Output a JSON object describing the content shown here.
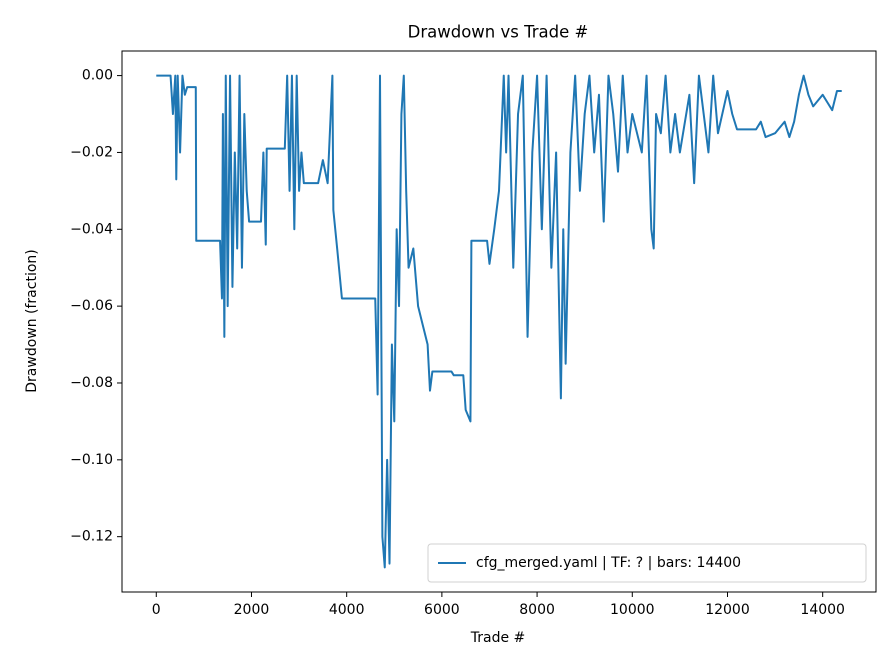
{
  "chart_data": {
    "type": "line",
    "title": "Drawdown vs Trade #",
    "x_label": "Trade #",
    "y_label": "Drawdown (fraction)",
    "x": [
      0,
      300,
      350,
      400,
      420,
      450,
      500,
      550,
      600,
      650,
      830,
      840,
      1340,
      1380,
      1400,
      1430,
      1460,
      1500,
      1550,
      1600,
      1650,
      1700,
      1750,
      1800,
      1850,
      1900,
      1950,
      2200,
      2250,
      2300,
      2320,
      2700,
      2750,
      2800,
      2850,
      2900,
      2950,
      3000,
      3050,
      3100,
      3400,
      3500,
      3600,
      3700,
      3720,
      3800,
      3900,
      4600,
      4650,
      4700,
      4750,
      4800,
      4850,
      4900,
      4950,
      5000,
      5050,
      5100,
      5150,
      5200,
      5250,
      5300,
      5400,
      5500,
      5600,
      5700,
      5750,
      5800,
      6200,
      6250,
      6450,
      6500,
      6600,
      6620,
      6950,
      7000,
      7100,
      7200,
      7300,
      7350,
      7400,
      7500,
      7600,
      7700,
      7800,
      7900,
      8000,
      8100,
      8200,
      8300,
      8400,
      8500,
      8550,
      8600,
      8700,
      8800,
      8900,
      9000,
      9100,
      9200,
      9300,
      9400,
      9500,
      9600,
      9700,
      9800,
      9900,
      10000,
      10200,
      10300,
      10400,
      10450,
      10500,
      10600,
      10700,
      10800,
      10900,
      11000,
      11200,
      11300,
      11400,
      11500,
      11600,
      11700,
      11800,
      12000,
      12100,
      12200,
      12600,
      12700,
      12800,
      13000,
      13200,
      13300,
      13400,
      13500,
      13600,
      13700,
      13800,
      14000,
      14100,
      14200,
      14300,
      14400
    ],
    "series": [
      {
        "name": "cfg_merged.yaml | TF: ? | bars: 14400",
        "color": "#1f77b4",
        "values": [
          0,
          0,
          -0.01,
          0,
          -0.027,
          0,
          -0.02,
          0,
          -0.005,
          -0.003,
          -0.003,
          -0.043,
          -0.043,
          -0.058,
          -0.01,
          -0.068,
          0,
          -0.06,
          0,
          -0.055,
          -0.02,
          -0.045,
          0,
          -0.05,
          -0.01,
          -0.03,
          -0.038,
          -0.038,
          -0.02,
          -0.044,
          -0.019,
          -0.019,
          0,
          -0.03,
          0,
          -0.04,
          0,
          -0.03,
          -0.02,
          -0.028,
          -0.028,
          -0.022,
          -0.028,
          0,
          -0.035,
          -0.045,
          -0.058,
          -0.058,
          -0.083,
          0,
          -0.12,
          -0.128,
          -0.1,
          -0.127,
          -0.07,
          -0.09,
          -0.04,
          -0.06,
          -0.01,
          0,
          -0.03,
          -0.05,
          -0.045,
          -0.06,
          -0.065,
          -0.07,
          -0.082,
          -0.077,
          -0.077,
          -0.078,
          -0.078,
          -0.087,
          -0.09,
          -0.043,
          -0.043,
          -0.049,
          -0.04,
          -0.03,
          0,
          -0.02,
          0,
          -0.05,
          -0.01,
          0,
          -0.068,
          -0.02,
          0,
          -0.04,
          0,
          -0.05,
          -0.02,
          -0.084,
          -0.04,
          -0.075,
          -0.02,
          0,
          -0.03,
          -0.01,
          0,
          -0.02,
          -0.005,
          -0.038,
          0,
          -0.01,
          -0.025,
          0,
          -0.02,
          -0.01,
          -0.02,
          0,
          -0.04,
          -0.045,
          -0.01,
          -0.015,
          0,
          -0.02,
          -0.01,
          -0.02,
          -0.005,
          -0.028,
          0,
          -0.01,
          -0.02,
          0,
          -0.015,
          -0.004,
          -0.01,
          -0.014,
          -0.014,
          -0.012,
          -0.016,
          -0.015,
          -0.012,
          -0.016,
          -0.012,
          -0.005,
          0,
          -0.005,
          -0.008,
          -0.005,
          -0.007,
          -0.009,
          -0.004,
          -0.004
        ]
      }
    ],
    "xlim": [
      -720,
      15120
    ],
    "ylim": [
      -0.1344,
      0.0064
    ],
    "xticks": [
      0,
      2000,
      4000,
      6000,
      8000,
      10000,
      12000,
      14000
    ],
    "yticks": [
      {
        "value": 0,
        "label": "0.00"
      },
      {
        "value": -0.02,
        "label": "−0.02"
      },
      {
        "value": -0.04,
        "label": "−0.04"
      },
      {
        "value": -0.06,
        "label": "−0.06"
      },
      {
        "value": -0.08,
        "label": "−0.08"
      },
      {
        "value": -0.1,
        "label": "−0.10"
      },
      {
        "value": -0.12,
        "label": "−0.12"
      }
    ],
    "legend": "lower right",
    "grid": false
  }
}
